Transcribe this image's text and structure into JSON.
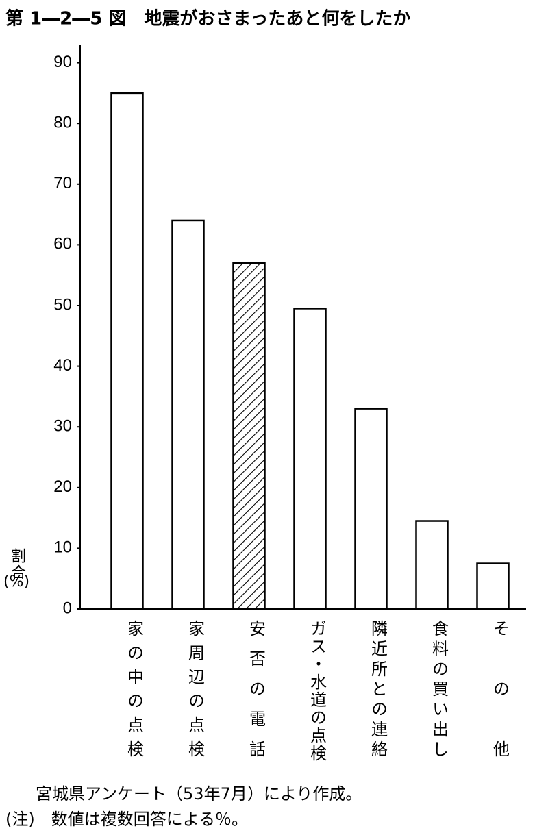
{
  "chart_data": {
    "type": "bar",
    "title": "第 1―2―5 図　地震がおさまったあと何をしたか",
    "ylabel": "割合",
    "yunit": "(%)",
    "categories": [
      "家の中の点検",
      "家周辺の点検",
      "安否の電話",
      "ガス・水道の点検",
      "隣近所との連絡",
      "食料の買い出し",
      "その他"
    ],
    "values": [
      85,
      64,
      57,
      49.5,
      33,
      14.5,
      7.5
    ],
    "hatched": [
      false,
      false,
      true,
      false,
      false,
      false,
      false
    ],
    "color": "#ffffff",
    "ylim": [
      0,
      93
    ],
    "yticks": [
      0,
      10,
      20,
      30,
      40,
      50,
      60,
      70,
      80,
      90
    ],
    "grid": false,
    "notes": [
      "宮城県アンケート（53年7月）により作成。",
      "(注)　数値は複数回答による％。"
    ]
  }
}
